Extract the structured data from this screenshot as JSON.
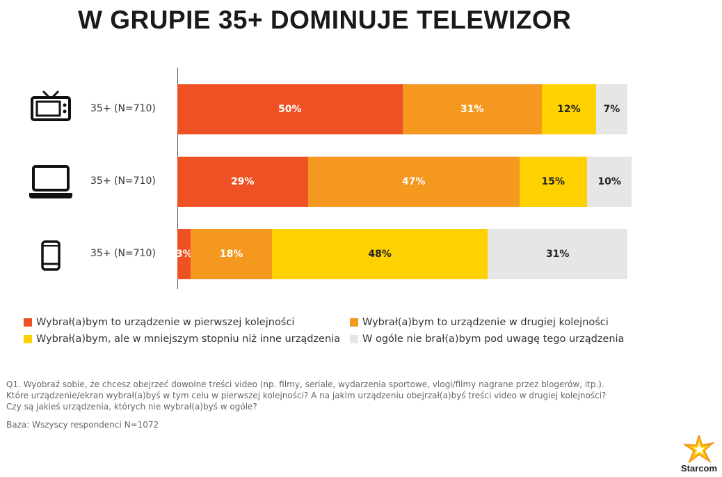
{
  "chart_data": {
    "type": "bar",
    "stacked": true,
    "orientation": "horizontal",
    "title": "W GRUPIE 35+ DOMINUJE TELEWIZOR",
    "categories": [
      "35+ (N=710)",
      "35+ (N=710)",
      "35+ (N=710)"
    ],
    "category_icons": [
      "tv-icon",
      "laptop-icon",
      "smartphone-icon"
    ],
    "series": [
      {
        "name": "Wybrał(a)bym to urządzenie w pierwszej kolejności",
        "color": "#EE5224",
        "label_color": "#ffffff",
        "values": [
          50,
          29,
          3
        ]
      },
      {
        "name": "Wybrał(a)bym to urządzenie w drugiej kolejności",
        "color": "#F4981F",
        "label_color": "#ffffff",
        "values": [
          31,
          47,
          18
        ]
      },
      {
        "name": "Wybrał(a)bym, ale w mniejszym stopniu niż inne urządzenia",
        "color": "#FFD100",
        "label_color": "#222222",
        "values": [
          12,
          15,
          48
        ]
      },
      {
        "name": "W ogóle nie brał(a)bym pod uwagę tego urządzenia",
        "color": "#E6E6E6",
        "label_color": "#222222",
        "values": [
          7,
          10,
          31
        ]
      }
    ],
    "xlim": [
      0,
      100
    ],
    "legend_position": "bottom"
  },
  "notes": {
    "q1": "Q1. Wyobraź sobie, że chcesz obejrzeć dowolne treści video (np. filmy, seriale, wydarzenia sportowe, vlogi/filmy nagrane przez blogerów, itp.).",
    "q2": "Które urządzenie/ekran wybrał(a)byś w tym celu w pierwszej kolejności? A na jakim urządzeniu obejrzał(a)byś treści video w drugiej kolejności?",
    "q3": "Czy są jakieś urządzenia, których nie wybrał(a)byś w ogóle?",
    "base": "Baza: Wszyscy respondenci N=1072"
  },
  "logo": {
    "text": "Starcom"
  }
}
